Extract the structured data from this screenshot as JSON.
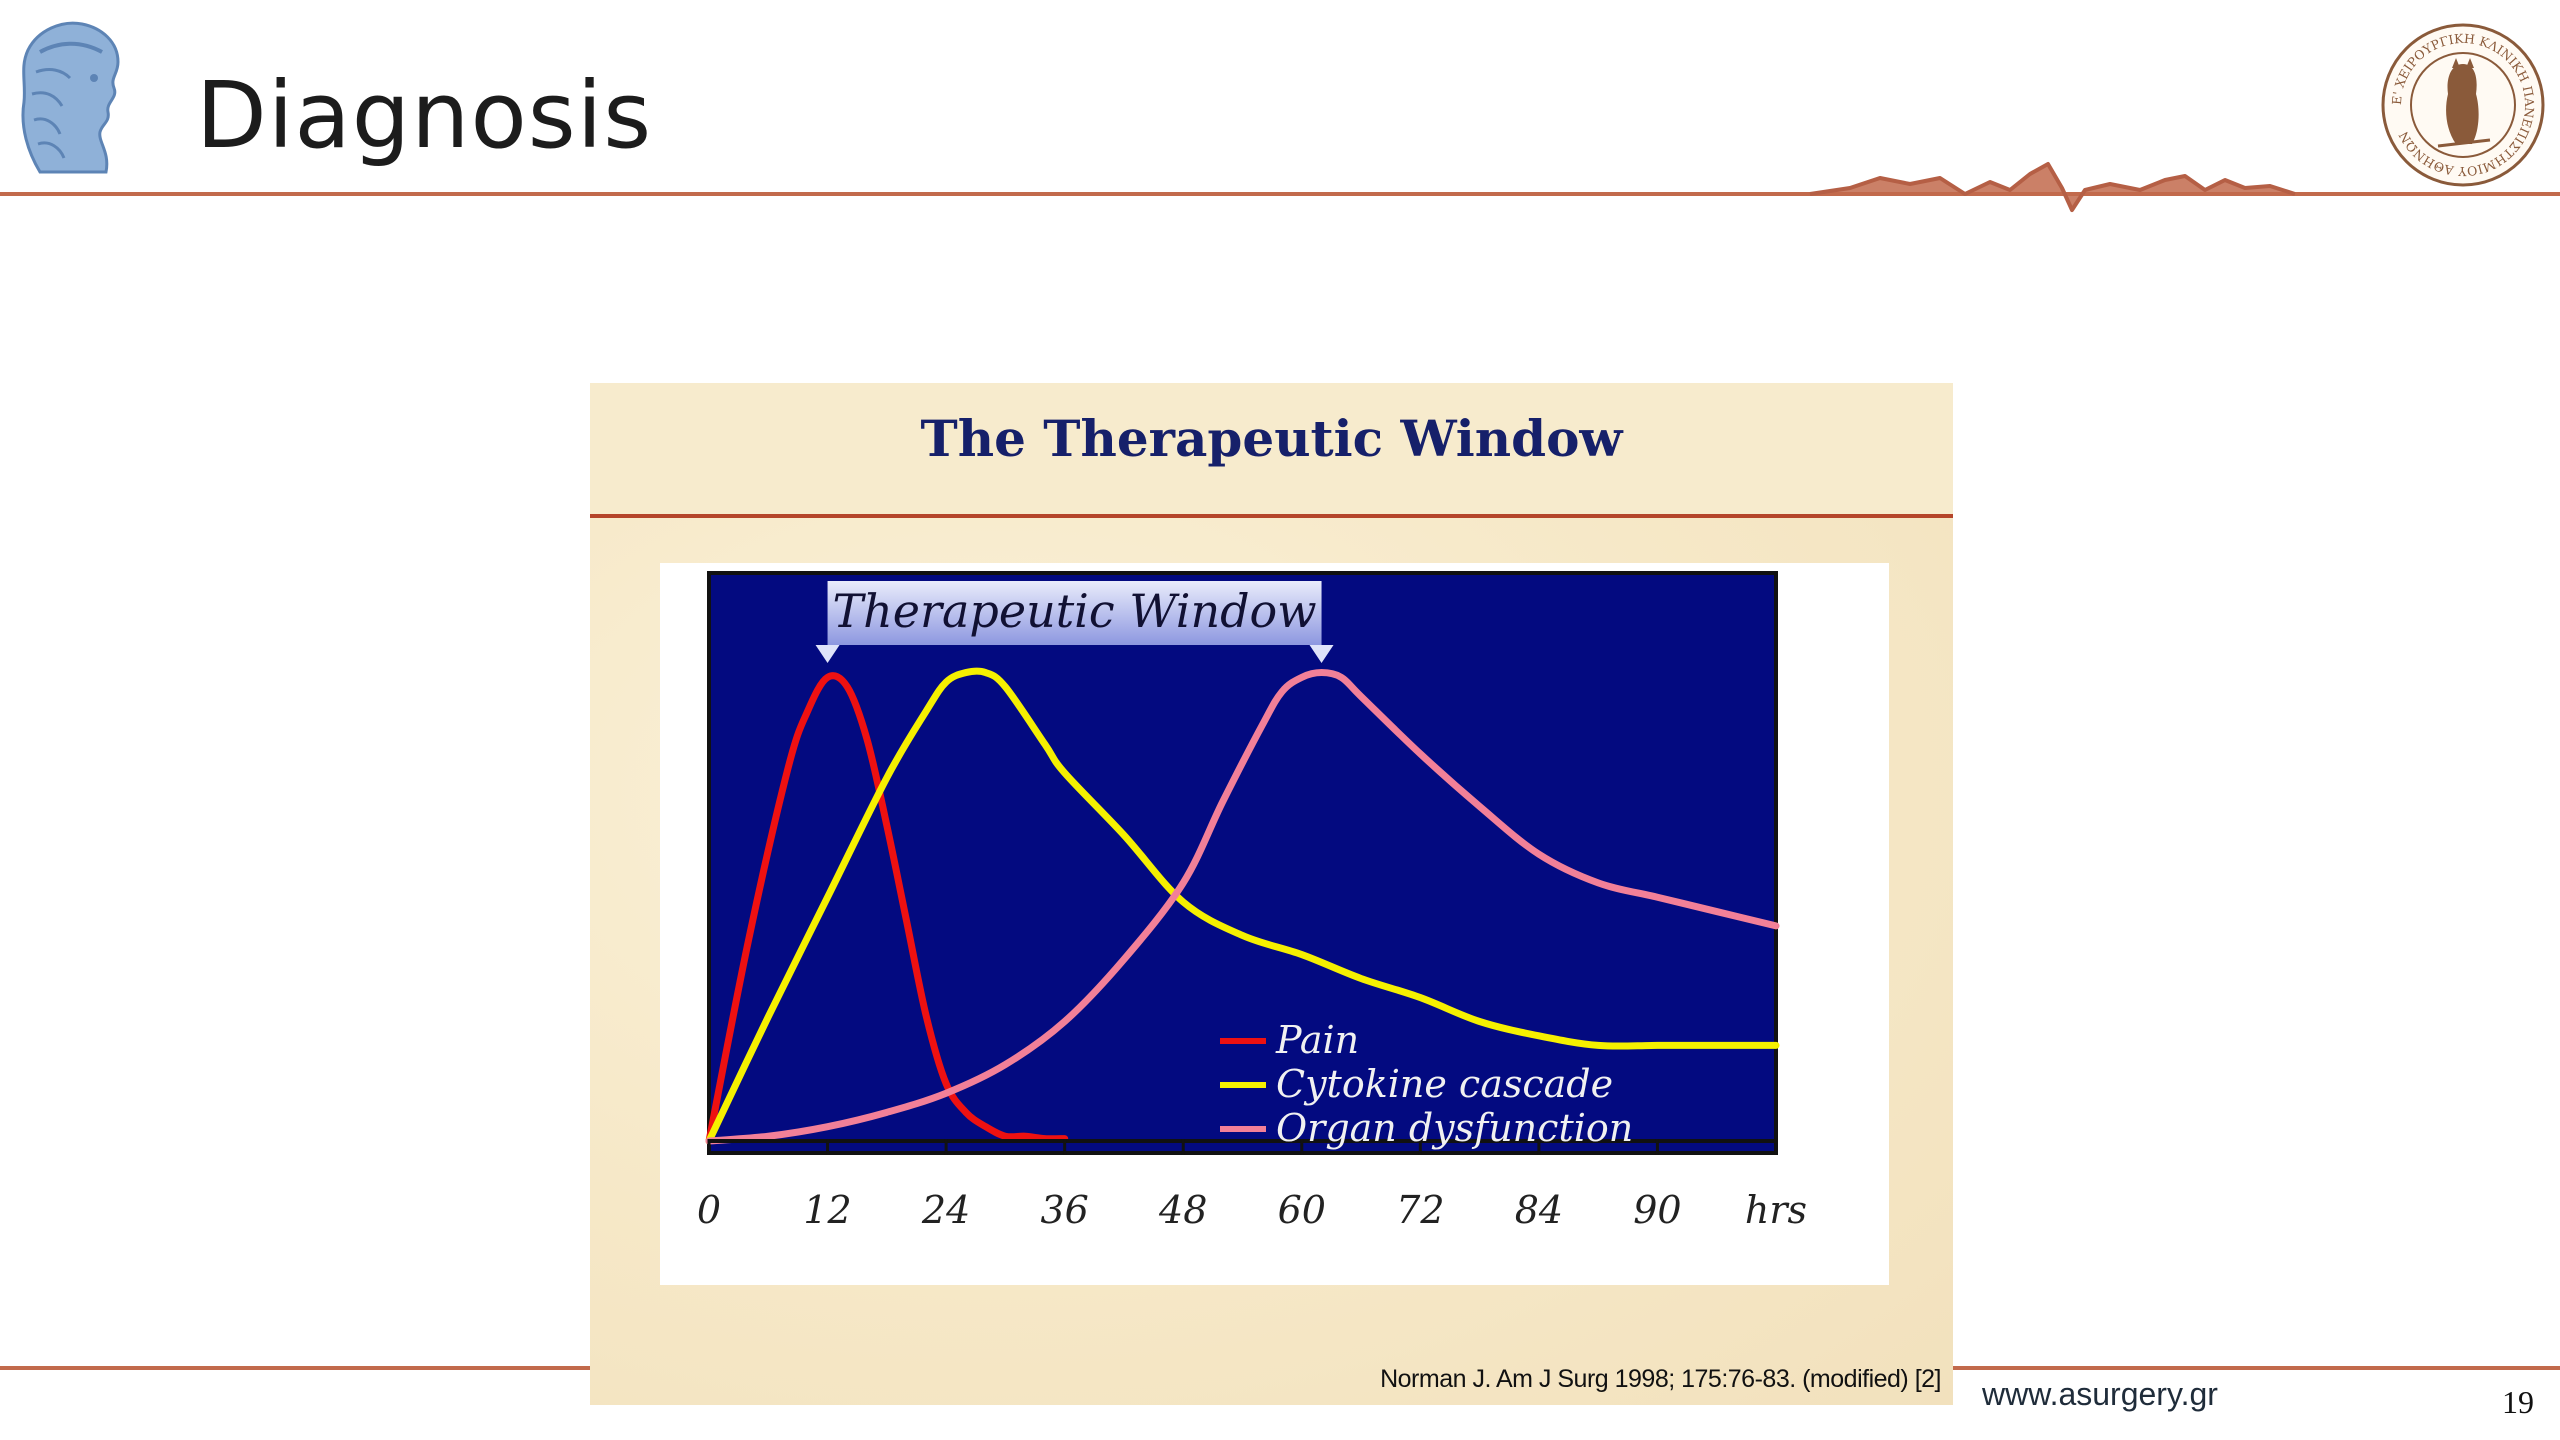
{
  "slide": {
    "title": "Diagnosis",
    "website": "www.asurgery.gr",
    "page_number": "19",
    "left_logo_icon": "athena-head-icon",
    "right_logo_icon": "owl-seal-icon",
    "right_logo_text": "Ε' ΧΕΙΡΟΥΡΓΙΚΗ ΚΛΙΝΙΚΗ ΠΑΝΕΠΙΣΤΗΜΙΟΥ ΑΘΗΝΩΝ",
    "accent_color": "#c26a4c"
  },
  "figure": {
    "title": "The Therapeutic Window",
    "citation": "Norman J. Am J Surg 1998; 175:76-83. (modified) [2]"
  },
  "chart_data": {
    "type": "line",
    "title": "",
    "xlabel": "hrs",
    "ylabel": "",
    "tick_labels": [
      "0",
      "12",
      "24",
      "36",
      "48",
      "60",
      "72",
      "84",
      "90",
      "hrs"
    ],
    "xlim": [
      0,
      108
    ],
    "ylim": [
      0,
      1
    ],
    "grid": false,
    "plot_background": "#030a80",
    "legend_position": "bottom-right",
    "window_banner": {
      "label": "Therapeutic Window",
      "start": 12,
      "end": 62
    },
    "series": [
      {
        "name": "Pain",
        "color": "#ee1111",
        "x": [
          0,
          4,
          8,
          10,
          12,
          14,
          16,
          18,
          20,
          22,
          24,
          26,
          28,
          30,
          32,
          34,
          36
        ],
        "y": [
          0,
          0.42,
          0.78,
          0.9,
          0.97,
          0.95,
          0.84,
          0.66,
          0.46,
          0.26,
          0.12,
          0.06,
          0.03,
          0.01,
          0.01,
          0.005,
          0.005
        ]
      },
      {
        "name": "Cytokine cascade",
        "color": "#f5f000",
        "x": [
          0,
          6,
          12,
          18,
          22,
          24,
          26,
          28,
          30,
          34,
          36,
          42,
          48,
          54,
          60,
          66,
          72,
          78,
          84,
          90,
          96,
          102,
          108
        ],
        "y": [
          0,
          0.26,
          0.51,
          0.76,
          0.9,
          0.96,
          0.98,
          0.98,
          0.95,
          0.83,
          0.77,
          0.64,
          0.5,
          0.43,
          0.39,
          0.34,
          0.3,
          0.25,
          0.22,
          0.2,
          0.2,
          0.2,
          0.2
        ]
      },
      {
        "name": "Organ dysfunction",
        "color": "#f28098",
        "x": [
          0,
          6,
          12,
          18,
          24,
          30,
          36,
          42,
          48,
          52,
          56,
          58,
          60,
          62,
          64,
          66,
          72,
          78,
          84,
          90,
          96,
          102,
          108
        ],
        "y": [
          0,
          0.01,
          0.03,
          0.06,
          0.1,
          0.16,
          0.25,
          0.38,
          0.54,
          0.71,
          0.87,
          0.94,
          0.97,
          0.98,
          0.97,
          0.93,
          0.81,
          0.7,
          0.6,
          0.54,
          0.51,
          0.48,
          0.45
        ]
      }
    ]
  }
}
